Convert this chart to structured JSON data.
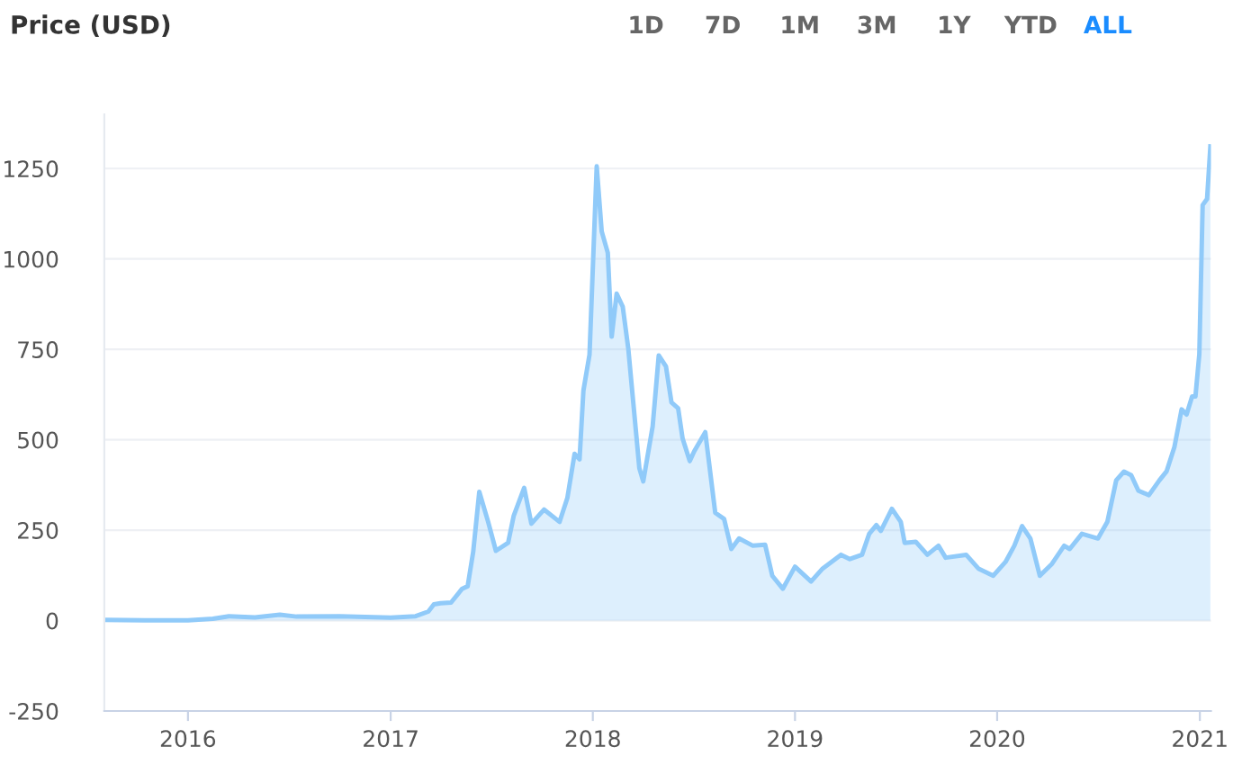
{
  "chart_data": {
    "type": "area",
    "ylabel": "Price (USD)",
    "annotations": [
      "1D",
      "7D",
      "1M",
      "3M",
      "1Y",
      "YTD",
      "ALL"
    ],
    "x": [
      "2015-08-03",
      "2015-10-15",
      "2016-01-01",
      "2016-02-15",
      "2016-03-15",
      "2016-05-01",
      "2016-06-15",
      "2016-07-15",
      "2016-10-01",
      "2017-01-01",
      "2017-02-15",
      "2017-03-10",
      "2017-03-20",
      "2017-04-01",
      "2017-04-20",
      "2017-05-10",
      "2017-05-20",
      "2017-05-30",
      "2017-06-10",
      "2017-06-26",
      "2017-07-10",
      "2017-08-01",
      "2017-08-11",
      "2017-08-30",
      "2017-09-12",
      "2017-10-05",
      "2017-11-02",
      "2017-11-16",
      "2017-11-29",
      "2017-12-08",
      "2017-12-15",
      "2017-12-26",
      "2018-01-08",
      "2018-01-17",
      "2018-01-28",
      "2018-02-04",
      "2018-02-13",
      "2018-02-24",
      "2018-03-06",
      "2018-03-15",
      "2018-03-26",
      "2018-04-02",
      "2018-04-19",
      "2018-04-30",
      "2018-05-13",
      "2018-05-23",
      "2018-06-04",
      "2018-06-12",
      "2018-06-25",
      "2018-07-03",
      "2018-07-23",
      "2018-08-10",
      "2018-08-26",
      "2018-09-08",
      "2018-09-22",
      "2018-10-17",
      "2018-11-08",
      "2018-11-21",
      "2018-12-10",
      "2019-01-01",
      "2019-01-30",
      "2019-02-20",
      "2019-03-25",
      "2019-04-10",
      "2019-05-02",
      "2019-05-15",
      "2019-05-28",
      "2019-06-05",
      "2019-06-25",
      "2019-07-11",
      "2019-07-18",
      "2019-08-07",
      "2019-08-28",
      "2019-09-17",
      "2019-09-30",
      "2019-11-06",
      "2019-11-28",
      "2019-12-25",
      "2020-01-16",
      "2020-02-01",
      "2020-02-15",
      "2020-03-01",
      "2020-03-18",
      "2020-04-09",
      "2020-05-01",
      "2020-05-11",
      "2020-06-02",
      "2020-07-01",
      "2020-07-18",
      "2020-08-03",
      "2020-08-17",
      "2020-08-30",
      "2020-09-12",
      "2020-10-01",
      "2020-10-20",
      "2020-11-02",
      "2020-11-16",
      "2020-11-29",
      "2020-12-08",
      "2020-12-18",
      "2020-12-24",
      "2020-12-31",
      "2021-01-06",
      "2021-01-14",
      "2021-01-20"
    ],
    "series": [
      {
        "color": "#90caf9",
        "values": [
          2,
          1,
          1,
          5,
          12,
          9,
          16,
          11,
          12,
          8,
          12,
          25,
          45,
          48,
          50,
          88,
          95,
          190,
          356,
          273,
          193,
          215,
          289,
          367,
          268,
          307,
          273,
          339,
          461,
          446,
          636,
          735,
          1256,
          1076,
          1017,
          785,
          904,
          868,
          752,
          603,
          421,
          385,
          537,
          733,
          703,
          603,
          587,
          504,
          441,
          468,
          521,
          298,
          281,
          198,
          227,
          207,
          210,
          124,
          88,
          149,
          108,
          144,
          182,
          170,
          182,
          240,
          264,
          248,
          309,
          273,
          215,
          218,
          182,
          207,
          174,
          182,
          144,
          124,
          162,
          207,
          261,
          227,
          124,
          157,
          207,
          198,
          240,
          227,
          273,
          388,
          412,
          402,
          359,
          347,
          388,
          413,
          480,
          584,
          570,
          620,
          620,
          736,
          1149,
          1166,
          1311
        ]
      }
    ],
    "xlim": [
      "2015-08-03",
      "2021-01-21"
    ],
    "xticks": [
      "2016",
      "2017",
      "2018",
      "2019",
      "2020",
      "2021"
    ],
    "ylim": [
      -250,
      1400
    ],
    "yticks": [
      -250,
      0,
      250,
      500,
      750,
      1000,
      1250
    ],
    "grid": "y"
  }
}
